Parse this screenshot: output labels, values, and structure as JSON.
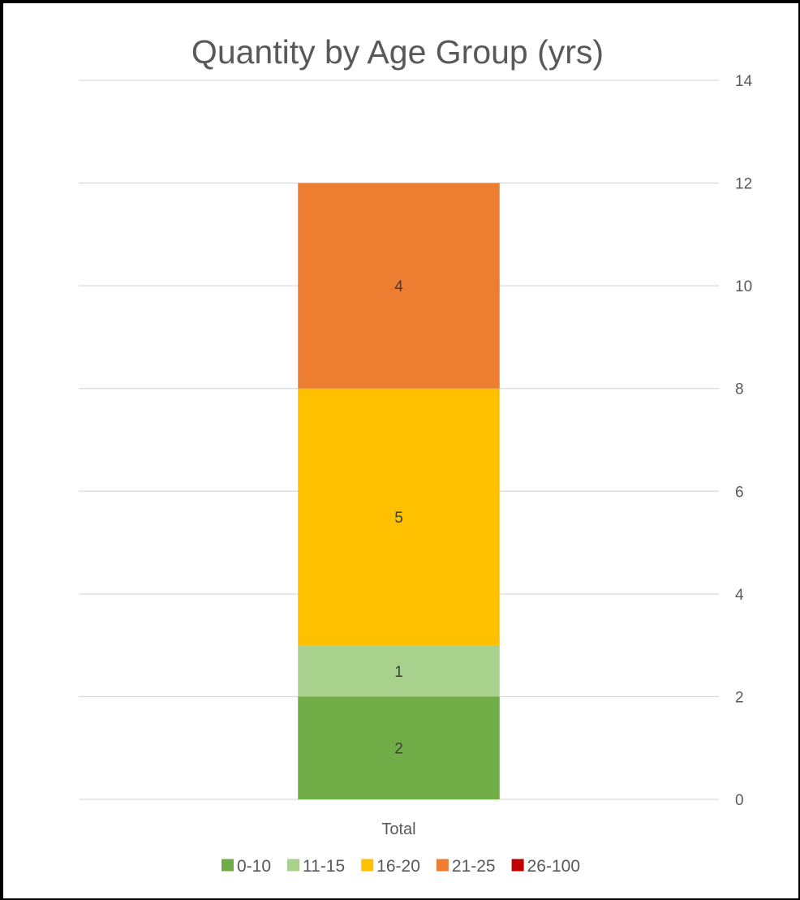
{
  "chart_data": {
    "type": "bar",
    "stacked": true,
    "title": "Quantity by Age Group (yrs)",
    "categories": [
      "Total"
    ],
    "series": [
      {
        "name": "0-10",
        "values": [
          2
        ],
        "color": "#70AD47"
      },
      {
        "name": "11-15",
        "values": [
          1
        ],
        "color": "#A9D18E"
      },
      {
        "name": "16-20",
        "values": [
          5
        ],
        "color": "#FFC000"
      },
      {
        "name": "21-25",
        "values": [
          4
        ],
        "color": "#ED7D31"
      },
      {
        "name": "26-100",
        "values": [
          0
        ],
        "color": "#C00000"
      }
    ],
    "ylim": [
      0,
      14
    ],
    "yticks": [
      "0",
      "2",
      "4",
      "6",
      "8",
      "10",
      "12",
      "14"
    ],
    "y_axis_position": "right",
    "grid": true,
    "legend": "bottom"
  }
}
